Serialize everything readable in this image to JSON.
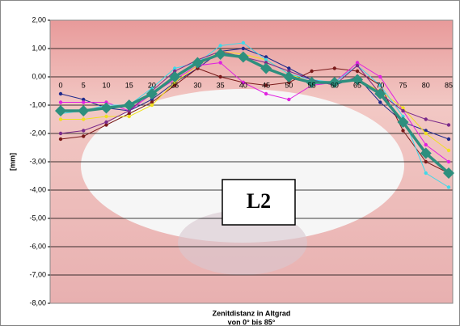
{
  "chart_data": {
    "type": "line",
    "ylabel": "[mm]",
    "xlabel": [
      "Zenitdistanz in Altgrad",
      "von 0° bis 85°"
    ],
    "annotation": "L2",
    "categories": [
      0,
      5,
      10,
      15,
      20,
      25,
      30,
      35,
      40,
      45,
      50,
      55,
      60,
      65,
      70,
      75,
      80,
      85
    ],
    "ylim": [
      -8,
      2
    ],
    "yticks": [
      {
        "value": 2,
        "label": "2,00"
      },
      {
        "value": 1,
        "label": "1,00"
      },
      {
        "value": 0,
        "label": "0,00"
      },
      {
        "value": -1,
        "label": "-1,00"
      },
      {
        "value": -2,
        "label": "-2,00"
      },
      {
        "value": -3,
        "label": "-3,00"
      },
      {
        "value": -4,
        "label": "-4,00"
      },
      {
        "value": -5,
        "label": "-5,00"
      },
      {
        "value": -6,
        "label": "-6,00"
      },
      {
        "value": -7,
        "label": "-7,00"
      },
      {
        "value": -8,
        "label": "-8,00"
      }
    ],
    "grid": true,
    "series": [
      {
        "color": "#1f2a8c",
        "marker": "circle",
        "values": [
          -0.6,
          -0.8,
          -1.1,
          -1.2,
          -0.8,
          -0.2,
          0.3,
          0.9,
          1.0,
          0.7,
          0.3,
          -0.1,
          -0.3,
          0.0,
          -0.9,
          -1.6,
          -1.9,
          -2.2
        ]
      },
      {
        "color": "#7a1a1a",
        "marker": "circle",
        "values": [
          -2.2,
          -2.1,
          -1.7,
          -1.3,
          -0.9,
          -0.3,
          0.3,
          0.0,
          -0.2,
          -0.3,
          -0.2,
          0.2,
          0.3,
          0.2,
          -0.3,
          -1.9,
          -3.0,
          -3.4
        ]
      },
      {
        "color": "#e020e0",
        "marker": "circle",
        "values": [
          -0.9,
          -0.9,
          -0.9,
          -1.2,
          -0.6,
          -0.1,
          0.4,
          0.5,
          -0.2,
          -0.6,
          -0.8,
          -0.3,
          -0.2,
          0.5,
          0.0,
          -1.2,
          -2.4,
          -3.0
        ]
      },
      {
        "color": "#f0e020",
        "marker": "circle",
        "values": [
          -1.5,
          -1.5,
          -1.4,
          -1.4,
          -1.0,
          -0.2,
          0.4,
          0.9,
          0.8,
          0.6,
          0.1,
          -0.2,
          -0.2,
          -0.1,
          -0.5,
          -1.1,
          -2.0,
          -2.6
        ]
      },
      {
        "color": "#40d8e8",
        "marker": "circle",
        "values": [
          -1.3,
          -1.2,
          -1.0,
          -1.0,
          -0.4,
          0.3,
          0.5,
          1.1,
          1.2,
          0.6,
          0.1,
          -0.1,
          -0.2,
          0.4,
          -0.3,
          -1.4,
          -3.4,
          -3.9
        ]
      },
      {
        "color": "#7a2a8a",
        "marker": "circle",
        "values": [
          -2.0,
          -1.9,
          -1.6,
          -1.2,
          -0.5,
          0.2,
          0.6,
          0.9,
          0.7,
          0.5,
          0.2,
          -0.1,
          -0.3,
          0.4,
          -0.6,
          -1.2,
          -1.5,
          -1.7
        ]
      },
      {
        "color": "#2e8f7e",
        "marker": "diamond",
        "values": [
          -1.2,
          -1.2,
          -1.1,
          -1.0,
          -0.6,
          0.0,
          0.5,
          0.8,
          0.7,
          0.3,
          0.0,
          -0.2,
          -0.2,
          -0.1,
          -0.6,
          -1.6,
          -2.7,
          -3.4
        ]
      }
    ]
  }
}
